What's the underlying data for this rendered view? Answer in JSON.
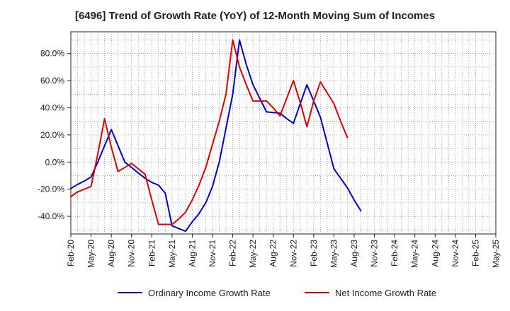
{
  "colors": {
    "ordinary": "#0000cc",
    "net": "#dd0000",
    "grid": "#999999",
    "axis": "#222222"
  },
  "chart_data": {
    "type": "line",
    "title": "[6496]  Trend of Growth Rate (YoY) of 12-Month Moving Sum of Incomes",
    "xlabel": "",
    "ylabel": "",
    "x": [
      "Feb-20",
      "May-20",
      "Aug-20",
      "Nov-20",
      "Feb-21",
      "May-21",
      "Aug-21",
      "Nov-21",
      "Feb-22",
      "May-22",
      "Aug-22",
      "Nov-22",
      "Feb-23",
      "May-23",
      "Aug-23",
      "Nov-23",
      "Feb-24",
      "May-24",
      "Aug-24",
      "Nov-24",
      "Feb-25",
      "May-25"
    ],
    "x_tick_labels": [
      "Feb-20",
      "May-20",
      "Aug-20",
      "Nov-20",
      "Feb-21",
      "May-21",
      "Aug-21",
      "Nov-21",
      "Feb-22",
      "May-22",
      "Aug-22",
      "Nov-22",
      "Feb-23",
      "May-23",
      "Aug-23",
      "Nov-23",
      "Feb-24",
      "May-24",
      "Aug-24",
      "Nov-24",
      "Feb-25",
      "May-25"
    ],
    "y_ticks": [
      -40,
      -20,
      0,
      20,
      40,
      60,
      80
    ],
    "y_tick_labels": [
      "-40.0%",
      "-20.0%",
      "0.0%",
      "20.0%",
      "40.0%",
      "60.0%",
      "80.0%"
    ],
    "ylim": [
      -53,
      96
    ],
    "grid": true,
    "legend_position": "bottom",
    "series": [
      {
        "name": "Ordinary Income Growth Rate",
        "color": "#0000cc",
        "points": [
          [
            "Feb-20",
            -19.5
          ],
          [
            "Mar-20",
            -16.5
          ],
          [
            "Apr-20",
            -14
          ],
          [
            "May-20",
            -11
          ],
          [
            "Jun-20",
            0
          ],
          [
            "Jul-20",
            12
          ],
          [
            "Aug-20",
            24
          ],
          [
            "Sep-20",
            12
          ],
          [
            "Oct-20",
            0
          ],
          [
            "Nov-20",
            -4
          ],
          [
            "Dec-20",
            -8
          ],
          [
            "Jan-21",
            -12
          ],
          [
            "Feb-21",
            -15
          ],
          [
            "Mar-21",
            -17
          ],
          [
            "Apr-21",
            -23
          ],
          [
            "May-21",
            -47
          ],
          [
            "Jun-21",
            -49
          ],
          [
            "Jul-21",
            -51
          ],
          [
            "Aug-21",
            -44
          ],
          [
            "Sep-21",
            -38
          ],
          [
            "Oct-21",
            -30
          ],
          [
            "Nov-21",
            -18
          ],
          [
            "Dec-21",
            0
          ],
          [
            "Jan-22",
            25
          ],
          [
            "Feb-22",
            50
          ],
          [
            "Mar-22",
            90
          ],
          [
            "Apr-22",
            72
          ],
          [
            "May-22",
            57
          ],
          [
            "Jun-22",
            47
          ],
          [
            "Jul-22",
            37
          ],
          [
            "Aug-22",
            36.5
          ],
          [
            "Sep-22",
            36
          ],
          [
            "Oct-22",
            32
          ],
          [
            "Nov-22",
            28.5
          ],
          [
            "Dec-22",
            43
          ],
          [
            "Jan-23",
            57
          ],
          [
            "Feb-23",
            45
          ],
          [
            "Mar-23",
            33
          ],
          [
            "Apr-23",
            14
          ],
          [
            "May-23",
            -5
          ],
          [
            "Jun-23",
            -12
          ],
          [
            "Jul-23",
            -19
          ],
          [
            "Aug-23",
            -28
          ],
          [
            "Sep-23",
            -36
          ]
        ]
      },
      {
        "name": "Net Income Growth Rate",
        "color": "#dd0000",
        "points": [
          [
            "Feb-20",
            -25.5
          ],
          [
            "Mar-20",
            -22
          ],
          [
            "Apr-20",
            -20
          ],
          [
            "May-20",
            -18
          ],
          [
            "Jun-20",
            6
          ],
          [
            "Jul-20",
            32
          ],
          [
            "Aug-20",
            11
          ],
          [
            "Sep-20",
            -7
          ],
          [
            "Oct-20",
            -4
          ],
          [
            "Nov-20",
            -1
          ],
          [
            "Dec-20",
            -5
          ],
          [
            "Jan-21",
            -9
          ],
          [
            "Feb-21",
            -28
          ],
          [
            "Mar-21",
            -46
          ],
          [
            "Apr-21",
            -46
          ],
          [
            "May-21",
            -46
          ],
          [
            "Jun-21",
            -42
          ],
          [
            "Jul-21",
            -37
          ],
          [
            "Aug-21",
            -28
          ],
          [
            "Sep-21",
            -17
          ],
          [
            "Oct-21",
            -4
          ],
          [
            "Nov-21",
            13
          ],
          [
            "Dec-21",
            30
          ],
          [
            "Jan-22",
            50
          ],
          [
            "Feb-22",
            90
          ],
          [
            "Mar-22",
            70
          ],
          [
            "Apr-22",
            57
          ],
          [
            "May-22",
            45
          ],
          [
            "Jun-22",
            45
          ],
          [
            "Jul-22",
            45
          ],
          [
            "Aug-22",
            40
          ],
          [
            "Sep-22",
            34
          ],
          [
            "Oct-22",
            47
          ],
          [
            "Nov-22",
            60
          ],
          [
            "Dec-22",
            44
          ],
          [
            "Jan-23",
            26
          ],
          [
            "Feb-23",
            45
          ],
          [
            "Mar-23",
            59
          ],
          [
            "Apr-23",
            51
          ],
          [
            "May-23",
            43
          ],
          [
            "Jun-23",
            30
          ],
          [
            "Jul-23",
            18
          ]
        ]
      }
    ]
  }
}
